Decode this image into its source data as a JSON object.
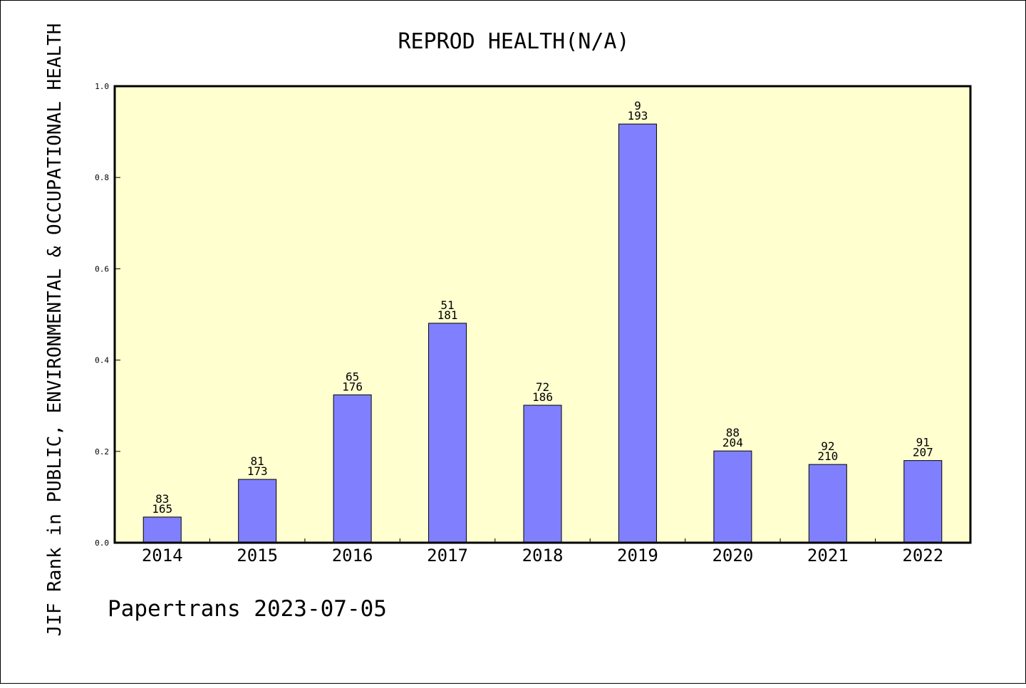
{
  "chart_data": {
    "type": "bar",
    "title": "REPROD HEALTH(N/A)",
    "ylabel": "JIF Rank in PUBLIC, ENVIRONMENTAL & OCCUPATIONAL HEALTH",
    "xlabel": "",
    "footer": "Papertrans 2023-07-05",
    "ylim": [
      0,
      1.0
    ],
    "yticks": [
      "0.0",
      "0.2",
      "0.4",
      "0.6",
      "0.8",
      "1.0"
    ],
    "categories": [
      "2014",
      "2015",
      "2016",
      "2017",
      "2018",
      "2019",
      "2020",
      "2021",
      "2022"
    ],
    "values": [
      0.0562,
      0.1387,
      0.3239,
      0.4807,
      0.3011,
      0.9171,
      0.201,
      0.1714,
      0.18
    ],
    "ranks": [
      "83",
      "81",
      "65",
      "51",
      "72",
      "9",
      "88",
      "92",
      "91"
    ],
    "totals": [
      "165",
      "173",
      "176",
      "181",
      "186",
      "193",
      "204",
      "210",
      "207"
    ],
    "colors": {
      "bar": "#8080ff",
      "plot_bg": "#ffffd0",
      "axis": "#000000"
    },
    "grid": false,
    "legend": "none"
  }
}
